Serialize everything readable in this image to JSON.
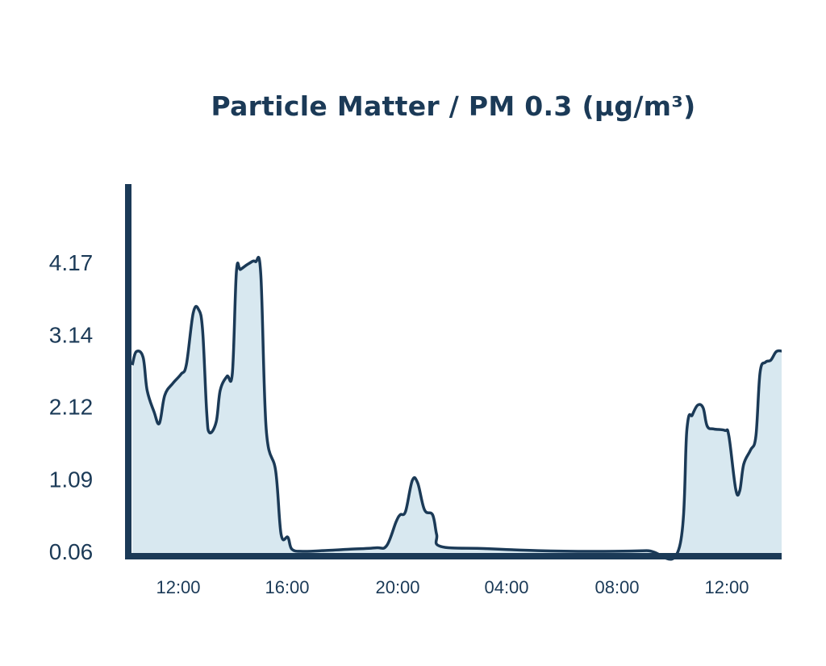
{
  "chart_data": {
    "type": "area",
    "title": "Particle Matter / PM 0.3 (µg/m³)",
    "xlabel": "",
    "ylabel": "",
    "x_tick_labels": [
      "12:00",
      "16:00",
      "20:00",
      "04:00",
      "08:00",
      "12:00"
    ],
    "y_tick_labels": [
      "0.06",
      "1.09",
      "2.12",
      "3.14",
      "4.17"
    ],
    "y_ticks": [
      0.06,
      1.09,
      2.12,
      3.14,
      4.17
    ],
    "ylim": [
      0.06,
      4.17
    ],
    "xlim": [
      0,
      24
    ],
    "series": [
      {
        "values": [
          [
            0.0,
            2.71
          ],
          [
            0.15,
            2.9
          ],
          [
            0.4,
            2.82
          ],
          [
            0.55,
            2.35
          ],
          [
            0.8,
            2.05
          ],
          [
            1.0,
            1.88
          ],
          [
            1.2,
            2.28
          ],
          [
            1.5,
            2.45
          ],
          [
            1.8,
            2.58
          ],
          [
            2.0,
            2.72
          ],
          [
            2.25,
            3.45
          ],
          [
            2.45,
            3.5
          ],
          [
            2.6,
            3.2
          ],
          [
            2.75,
            2.05
          ],
          [
            2.85,
            1.75
          ],
          [
            3.1,
            1.9
          ],
          [
            3.25,
            2.35
          ],
          [
            3.5,
            2.55
          ],
          [
            3.7,
            2.6
          ],
          [
            3.85,
            4.04
          ],
          [
            4.0,
            4.07
          ],
          [
            4.3,
            4.15
          ],
          [
            4.55,
            4.18
          ],
          [
            4.75,
            4.0
          ],
          [
            4.95,
            1.8
          ],
          [
            5.3,
            1.2
          ],
          [
            5.5,
            0.3
          ],
          [
            5.75,
            0.26
          ],
          [
            5.9,
            0.09
          ],
          [
            6.3,
            0.06
          ],
          [
            7.0,
            0.07
          ],
          [
            8.0,
            0.09
          ],
          [
            9.0,
            0.11
          ],
          [
            9.4,
            0.14
          ],
          [
            9.75,
            0.48
          ],
          [
            9.9,
            0.58
          ],
          [
            10.1,
            0.63
          ],
          [
            10.35,
            1.07
          ],
          [
            10.55,
            1.03
          ],
          [
            10.8,
            0.65
          ],
          [
            11.1,
            0.58
          ],
          [
            11.25,
            0.3
          ],
          [
            11.4,
            0.13
          ],
          [
            13.0,
            0.1
          ],
          [
            15.0,
            0.07
          ],
          [
            17.0,
            0.06
          ],
          [
            19.0,
            0.07
          ],
          [
            20.2,
            0.09
          ],
          [
            20.5,
            1.8
          ],
          [
            20.7,
            2.0
          ],
          [
            20.9,
            2.14
          ],
          [
            21.1,
            2.1
          ],
          [
            21.25,
            1.84
          ],
          [
            21.5,
            1.8
          ],
          [
            21.9,
            1.78
          ],
          [
            22.05,
            1.7
          ],
          [
            22.3,
            0.95
          ],
          [
            22.45,
            0.92
          ],
          [
            22.6,
            1.3
          ],
          [
            22.85,
            1.5
          ],
          [
            23.05,
            1.7
          ],
          [
            23.2,
            2.6
          ],
          [
            23.4,
            2.75
          ],
          [
            23.6,
            2.78
          ],
          [
            23.8,
            2.9
          ],
          [
            24.0,
            2.91
          ]
        ]
      }
    ],
    "grid": false,
    "legend": "none",
    "colors": {
      "line": "#1b3a57",
      "fill": "#d8e8f0",
      "axis": "#1b3a57",
      "text": "#1b3a57"
    }
  }
}
